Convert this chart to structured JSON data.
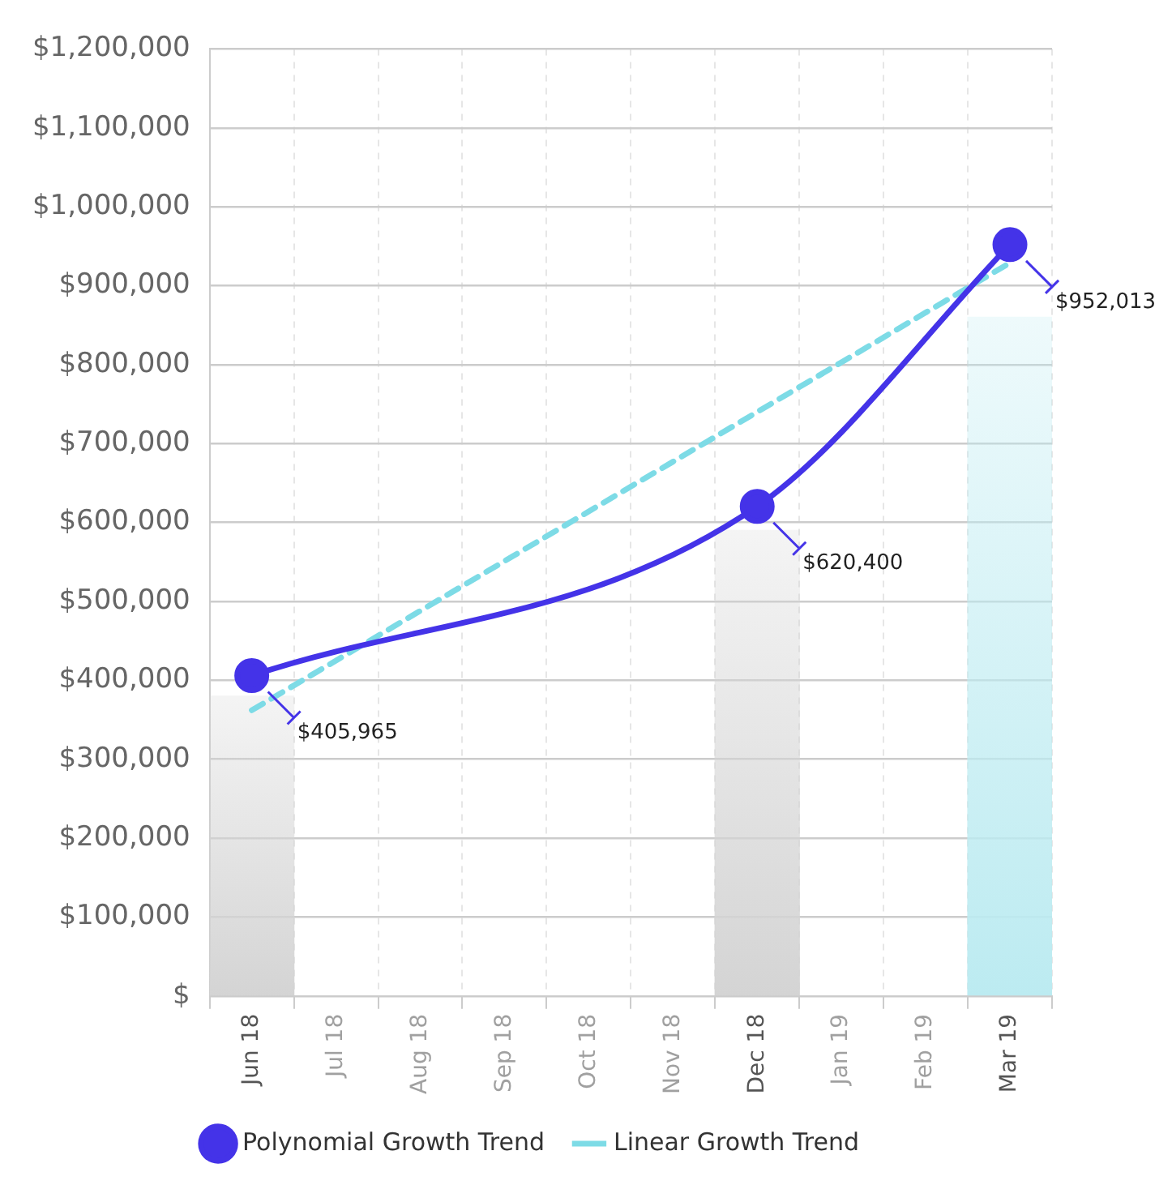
{
  "chart_data": {
    "type": "line",
    "categories": [
      "Jun 18",
      "Jul 18",
      "Aug 18",
      "Sep 18",
      "Oct 18",
      "Nov 18",
      "Dec 18",
      "Jan 19",
      "Feb 19",
      "Mar 19"
    ],
    "series": [
      {
        "type": "bar",
        "colors": [
          "#d4d4d4",
          null,
          null,
          null,
          null,
          null,
          "#d4d4d4",
          null,
          null,
          "#bcebf1"
        ],
        "values": [
          380000,
          null,
          null,
          null,
          null,
          null,
          590000,
          null,
          null,
          860000
        ]
      },
      {
        "name": "Polynomial Growth Trend",
        "color": "#4433e8",
        "values": [
          405965,
          null,
          null,
          null,
          null,
          null,
          620400,
          null,
          null,
          952013
        ],
        "value_labels": [
          "$405,965",
          null,
          null,
          null,
          null,
          null,
          "$620,400",
          null,
          null,
          "$952,013"
        ]
      },
      {
        "name": "Linear Growth Trend",
        "color": "#7ddbe6",
        "line_style": "dashed",
        "marker": "none",
        "values": [
          362000,
          425000,
          488000,
          551000,
          614000,
          677000,
          740000,
          803000,
          866000,
          929000
        ]
      }
    ],
    "ylim": [
      0,
      1200000
    ],
    "yticks": [
      {
        "value": 0,
        "label": "$"
      },
      {
        "value": 100000,
        "label": "$100,000"
      },
      {
        "value": 200000,
        "label": "$200,000"
      },
      {
        "value": 300000,
        "label": "$300,000"
      },
      {
        "value": 400000,
        "label": "$400,000"
      },
      {
        "value": 500000,
        "label": "$500,000"
      },
      {
        "value": 600000,
        "label": "$600,000"
      },
      {
        "value": 700000,
        "label": "$700,000"
      },
      {
        "value": 800000,
        "label": "$800,000"
      },
      {
        "value": 900000,
        "label": "$900,000"
      },
      {
        "value": 1000000,
        "label": "$1,000,000"
      },
      {
        "value": 1100000,
        "label": "$1,100,000"
      },
      {
        "value": 1200000,
        "label": "$1,200,000"
      }
    ],
    "grid": true,
    "legend": "bottom",
    "marker": "circle"
  }
}
